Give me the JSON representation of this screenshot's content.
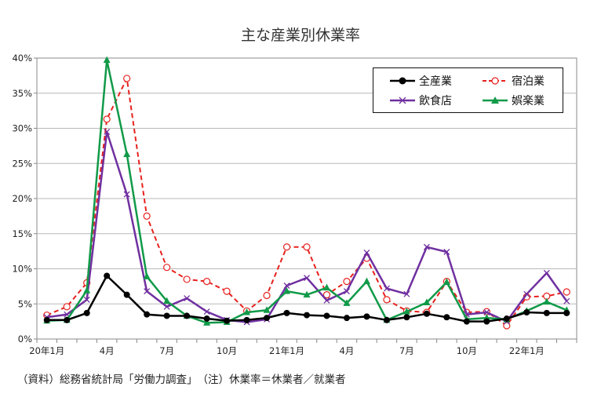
{
  "chart_data": {
    "type": "line",
    "title": "主な産業別休業率",
    "footnote": "（資料）総務省統計局「労働力調査」　（注）休業率＝休業者／就業者",
    "x_tick_labels": [
      "20年1月",
      "4月",
      "7月",
      "10月",
      "21年1月",
      "4月",
      "7月",
      "10月",
      "22年1月"
    ],
    "y_tick_labels": [
      "0%",
      "5%",
      "10%",
      "15%",
      "20%",
      "25%",
      "30%",
      "35%",
      "40%"
    ],
    "ylim": [
      0,
      40
    ],
    "y_unit": "%",
    "grid": true,
    "legend_position": "top-right",
    "series": [
      {
        "name": "全産業",
        "color": "#000000",
        "style": "solid",
        "marker": "filled-circle",
        "values": [
          2.7,
          2.7,
          3.7,
          9.0,
          6.3,
          3.5,
          3.3,
          3.3,
          2.9,
          2.6,
          2.7,
          3.0,
          3.7,
          3.4,
          3.3,
          3.0,
          3.2,
          2.7,
          3.1,
          3.6,
          3.1,
          2.5,
          2.5,
          2.9,
          3.8,
          3.7,
          3.7
        ]
      },
      {
        "name": "宿泊業",
        "color": "#e6211e",
        "style": "dashed",
        "marker": "open-circle",
        "values": [
          3.4,
          4.6,
          8.0,
          31.3,
          37.1,
          17.5,
          10.2,
          8.5,
          8.2,
          6.8,
          4.0,
          6.2,
          13.1,
          13.1,
          6.3,
          8.2,
          11.5,
          5.6,
          4.0,
          3.8,
          8.2,
          3.8,
          3.9,
          1.9,
          6.0,
          6.1,
          6.7
        ]
      },
      {
        "name": "飲食店",
        "color": "#7030a0",
        "style": "solid",
        "marker": "x",
        "values": [
          3.1,
          3.5,
          5.6,
          29.5,
          20.6,
          6.8,
          4.6,
          5.8,
          3.9,
          2.7,
          2.4,
          2.8,
          7.6,
          8.7,
          5.5,
          6.8,
          12.3,
          7.2,
          6.4,
          13.1,
          12.4,
          3.5,
          3.8,
          2.5,
          6.4,
          9.4,
          5.4
        ]
      },
      {
        "name": "娯楽業",
        "color": "#109a48",
        "style": "solid",
        "marker": "triangle",
        "values": [
          2.6,
          2.7,
          6.9,
          39.7,
          26.3,
          8.9,
          5.4,
          3.3,
          2.3,
          2.4,
          3.8,
          4.1,
          6.8,
          6.3,
          7.3,
          5.1,
          8.2,
          2.7,
          3.9,
          5.2,
          8.1,
          2.8,
          3.0,
          2.8,
          4.0,
          5.3,
          4.1
        ]
      }
    ]
  }
}
